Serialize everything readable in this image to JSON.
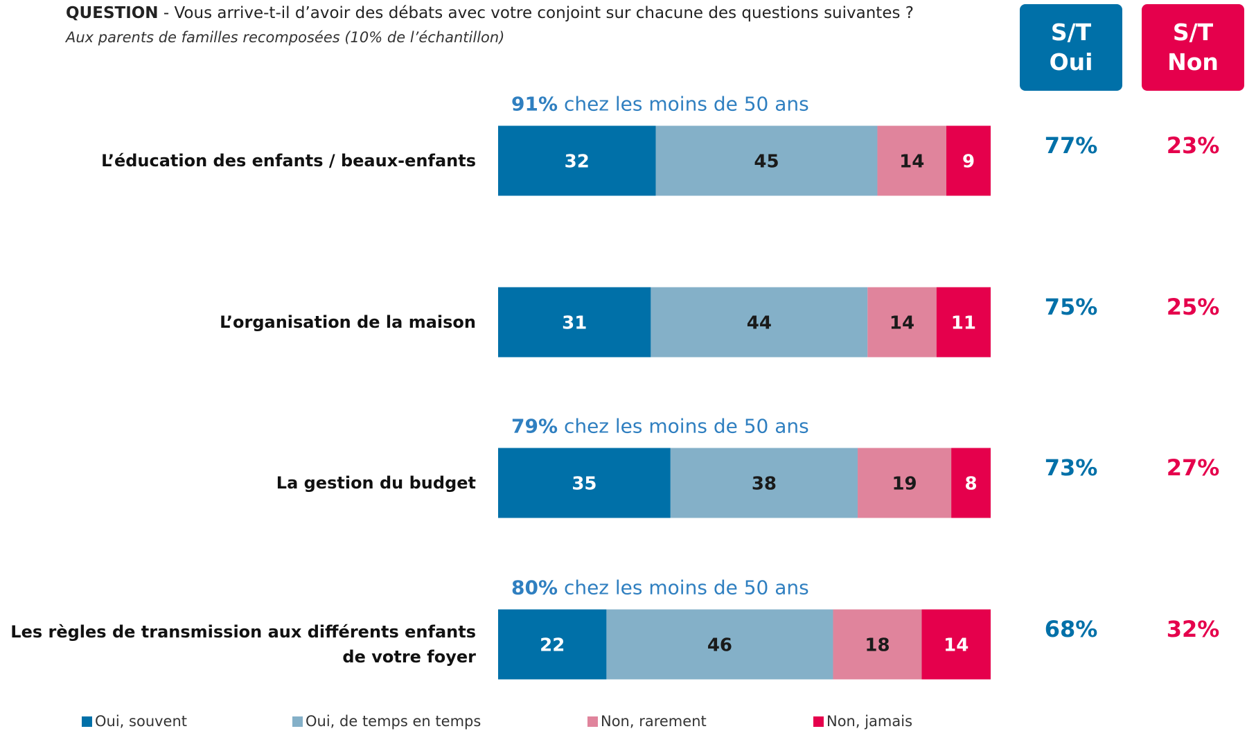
{
  "chart_data": {
    "type": "stacked_bar_horizontal",
    "title_label": "QUESTION",
    "title": "- Vous arrive-t-il d’avoir des débats avec votre conjoint sur chacune des questions suivantes ?",
    "subtitle": "Aux parents de familles recomposées (10% de l’échantillon)",
    "categories": [
      "L’éducation des enfants / beaux-enfants",
      "L’organisation de la maison",
      "La gestion du budget",
      "Les règles de transmission aux différents enfants de votre foyer"
    ],
    "xlim": [
      0,
      100
    ],
    "series": [
      {
        "name": "Oui, souvent",
        "color": "#0070a8",
        "label_color": "#ffffff",
        "values": [
          32,
          31,
          35,
          22
        ]
      },
      {
        "name": "Oui, de temps en temps",
        "color": "#84b0c8",
        "label_color": "#1a1a1a",
        "values": [
          45,
          44,
          38,
          46
        ]
      },
      {
        "name": "Non, rarement",
        "color": "#e0849c",
        "label_color": "#1a1a1a",
        "values": [
          14,
          14,
          19,
          18
        ]
      },
      {
        "name": "Non, jamais",
        "color": "#e5004c",
        "label_color": "#ffffff",
        "values": [
          9,
          11,
          8,
          14
        ]
      }
    ],
    "annotations": [
      {
        "value": 91,
        "label": "91%",
        "text": "chez les moins de 50 ans"
      },
      null,
      {
        "value": 79,
        "label": "79%",
        "text": "chez les moins de 50 ans"
      },
      {
        "value": 80,
        "label": "80%",
        "text": "chez les moins de 50 ans"
      }
    ],
    "annotation_color": "#2f7fc0",
    "totals": [
      {
        "name": "S/T Oui",
        "color": "#0070a8",
        "values": [
          77,
          75,
          73,
          68
        ],
        "value_labels": [
          "77%",
          "75%",
          "73%",
          "68%"
        ]
      },
      {
        "name": "S/T Non",
        "color": "#e5004c",
        "values": [
          23,
          25,
          27,
          32
        ],
        "value_labels": [
          "23%",
          "25%",
          "27%",
          "32%"
        ]
      }
    ]
  }
}
